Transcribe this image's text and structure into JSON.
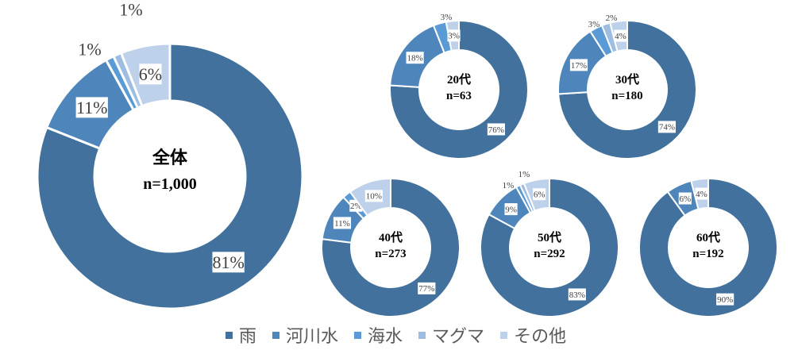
{
  "chart_data": {
    "type": "pie",
    "subtype": "donut",
    "legend": [
      "雨",
      "河川水",
      "海水",
      "マグマ",
      "その他"
    ],
    "colors": [
      "#41719c",
      "#4e86bb",
      "#5b9bd5",
      "#9dbde2",
      "#bed1ea"
    ],
    "legend_position": "bottom",
    "charts": [
      {
        "id": "total",
        "label": "全体",
        "n_label": "n=1,000",
        "values": [
          81,
          11,
          1,
          1,
          6
        ],
        "labels": [
          "81%",
          "11%",
          "1%",
          "1%",
          "6%"
        ]
      },
      {
        "id": "20s",
        "label": "20代",
        "n_label": "n=63",
        "values": [
          76,
          18,
          3,
          0,
          3
        ],
        "labels": [
          "76%",
          "18%",
          "3%",
          "",
          "3%"
        ]
      },
      {
        "id": "30s",
        "label": "30代",
        "n_label": "n=180",
        "values": [
          74,
          17,
          3,
          2,
          4
        ],
        "labels": [
          "74%",
          "17%",
          "3%",
          "2%",
          "4%"
        ]
      },
      {
        "id": "40s",
        "label": "40代",
        "n_label": "n=273",
        "values": [
          77,
          11,
          2,
          0,
          10
        ],
        "labels": [
          "77%",
          "11%",
          "2%",
          "",
          "10%"
        ]
      },
      {
        "id": "50s",
        "label": "50代",
        "n_label": "n=292",
        "values": [
          83,
          9,
          1,
          1,
          6
        ],
        "labels": [
          "83%",
          "9%",
          "1%",
          "1%",
          "6%"
        ]
      },
      {
        "id": "60s",
        "label": "60代",
        "n_label": "n=192",
        "values": [
          90,
          6,
          0,
          0,
          4
        ],
        "labels": [
          "90%",
          "6%",
          "",
          "",
          "4%"
        ]
      }
    ]
  },
  "legend": {
    "items": [
      {
        "label": "雨",
        "color": "#41719c"
      },
      {
        "label": "河川水",
        "color": "#4e86bb"
      },
      {
        "label": "海水",
        "color": "#5b9bd5"
      },
      {
        "label": "マグマ",
        "color": "#9dbde2"
      },
      {
        "label": "その他",
        "color": "#bed1ea"
      }
    ]
  }
}
